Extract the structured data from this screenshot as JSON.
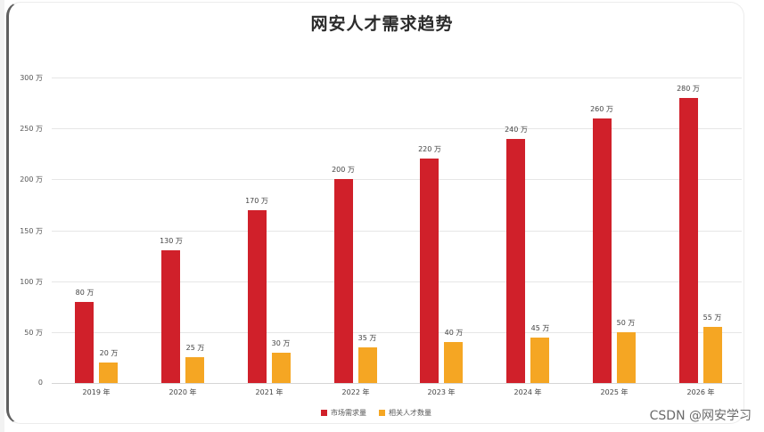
{
  "chart_data": {
    "type": "bar",
    "title": "网安人才需求趋势",
    "xlabel": "",
    "ylabel": "",
    "ylim": [
      0,
      300
    ],
    "yticks": [
      "0",
      "50 万",
      "100 万",
      "150 万",
      "200 万",
      "250 万",
      "300 万"
    ],
    "categories": [
      "2019 年",
      "2020 年",
      "2021 年",
      "2022 年",
      "2023 年",
      "2024 年",
      "2025 年",
      "2026 年"
    ],
    "series": [
      {
        "name": "市场需求量",
        "color": "#d0202a",
        "values": [
          80,
          130,
          170,
          200,
          220,
          240,
          260,
          280
        ],
        "labels": [
          "80 万",
          "130 万",
          "170 万",
          "200 万",
          "220 万",
          "240 万",
          "260 万",
          "280 万"
        ]
      },
      {
        "name": "相关人才数量",
        "color": "#f5a623",
        "values": [
          20,
          25,
          30,
          35,
          40,
          45,
          50,
          55
        ],
        "labels": [
          "20 万",
          "25 万",
          "30 万",
          "35 万",
          "40 万",
          "45 万",
          "50 万",
          "55 万"
        ]
      }
    ],
    "grid": true,
    "legend_position": "bottom"
  },
  "watermark": "CSDN @网安学习"
}
